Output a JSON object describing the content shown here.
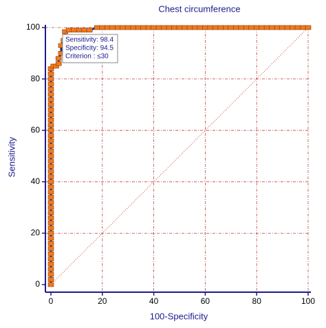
{
  "chart_data": {
    "type": "roc",
    "title": "Chest circumference",
    "x_label": "100-Specificity",
    "y_label": "Sensitivity",
    "xlim": [
      0,
      100
    ],
    "ylim": [
      0,
      100
    ],
    "xticks": [
      0,
      20,
      40,
      60,
      80,
      100
    ],
    "yticks": [
      0,
      20,
      40,
      60,
      80,
      100
    ],
    "grid": true,
    "annotation": [
      "Sensitivity: 98.4",
      "Specificity: 94.5",
      "Criterion : ≤30"
    ],
    "series": [
      {
        "name": "Chest circumference",
        "color": "#1f2a8c",
        "marker_color": "#f07a20",
        "x": [
          0,
          0,
          0,
          0,
          0,
          0,
          0,
          0,
          0,
          0,
          0,
          0,
          0,
          0,
          0,
          0,
          0,
          0,
          0,
          0,
          0,
          0,
          0,
          0,
          0,
          0,
          0,
          0,
          0,
          0,
          0,
          0,
          0,
          0,
          0,
          0,
          0,
          0,
          0,
          0,
          0,
          0,
          0,
          1,
          2,
          3,
          3,
          4,
          4,
          5,
          5.5,
          7,
          9,
          11,
          13,
          15,
          18,
          20,
          22,
          24,
          26,
          28,
          30,
          32,
          34,
          36,
          38,
          40,
          42,
          44,
          46,
          48,
          50,
          52,
          54,
          56,
          58,
          60,
          62,
          64,
          66,
          68,
          70,
          72,
          74,
          76,
          78,
          80,
          82,
          84,
          86,
          88,
          90,
          92,
          94,
          96,
          98,
          100
        ],
        "values": [
          0,
          2,
          4,
          6,
          8,
          10,
          12,
          14,
          16,
          18,
          20,
          22,
          24,
          26,
          28,
          30,
          32,
          34,
          36,
          38,
          40,
          42,
          44,
          46,
          48,
          50,
          52,
          54,
          56,
          58,
          60,
          62,
          64,
          66,
          68,
          70,
          72,
          74,
          76,
          78,
          80,
          82,
          84,
          85,
          85,
          86,
          88,
          90,
          93,
          95,
          98.4,
          99,
          99,
          99,
          99,
          99,
          100,
          100,
          100,
          100,
          100,
          100,
          100,
          100,
          100,
          100,
          100,
          100,
          100,
          100,
          100,
          100,
          100,
          100,
          100,
          100,
          100,
          100,
          100,
          100,
          100,
          100,
          100,
          100,
          100,
          100,
          100,
          100,
          100,
          100,
          100,
          100,
          100,
          100,
          100,
          100,
          100,
          100
        ]
      }
    ]
  }
}
